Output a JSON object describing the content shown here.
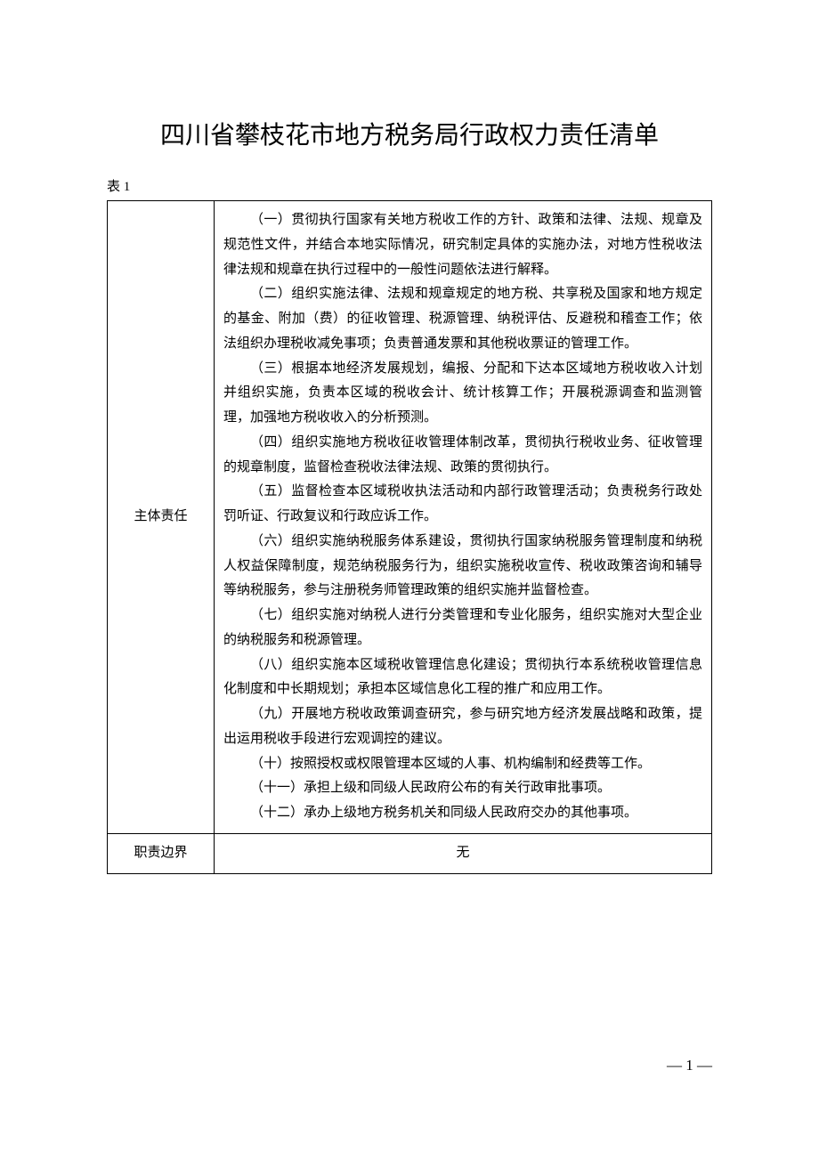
{
  "document": {
    "title": "四川省攀枝花市地方税务局行政权力责任清单",
    "table_label": "表 1",
    "page_number": "— 1 —",
    "background_color": "#ffffff",
    "text_color": "#000000",
    "border_color": "#000000",
    "title_fontsize": 28,
    "body_fontsize": 15,
    "rows": [
      {
        "label": "主体责任",
        "paragraphs": [
          "（一）贯彻执行国家有关地方税收工作的方针、政策和法律、法规、规章及规范性文件，并结合本地实际情况，研究制定具体的实施办法，对地方性税收法律法规和规章在执行过程中的一般性问题依法进行解释。",
          "（二）组织实施法律、法规和规章规定的地方税、共享税及国家和地方规定的基金、附加（费）的征收管理、税源管理、纳税评估、反避税和稽查工作；依法组织办理税收减免事项；负责普通发票和其他税收票证的管理工作。",
          "（三）根据本地经济发展规划，编报、分配和下达本区域地方税收收入计划并组织实施，负责本区域的税收会计、统计核算工作；开展税源调查和监测管理，加强地方税收收入的分析预测。",
          "（四）组织实施地方税收征收管理体制改革，贯彻执行税收业务、征收管理的规章制度，监督检查税收法律法规、政策的贯彻执行。",
          "（五）监督检查本区域税收执法活动和内部行政管理活动；负责税务行政处罚听证、行政复议和行政应诉工作。",
          "（六）组织实施纳税服务体系建设，贯彻执行国家纳税服务管理制度和纳税人权益保障制度，规范纳税服务行为，组织实施税收宣传、税收政策咨询和辅导等纳税服务，参与注册税务师管理政策的组织实施并监督检查。",
          "（七）组织实施对纳税人进行分类管理和专业化服务，组织实施对大型企业的纳税服务和税源管理。",
          "（八）组织实施本区域税收管理信息化建设；贯彻执行本系统税收管理信息化制度和中长期规划；承担本区域信息化工程的推广和应用工作。",
          "（九）开展地方税收政策调查研究，参与研究地方经济发展战略和政策，提出运用税收手段进行宏观调控的建议。",
          "（十）按照授权或权限管理本区域的人事、机构编制和经费等工作。",
          "（十一）承担上级和同级人民政府公布的有关行政审批事项。",
          "（十二）承办上级地方税务机关和同级人民政府交办的其他事项。"
        ]
      },
      {
        "label": "职责边界",
        "center_text": "无"
      }
    ]
  }
}
